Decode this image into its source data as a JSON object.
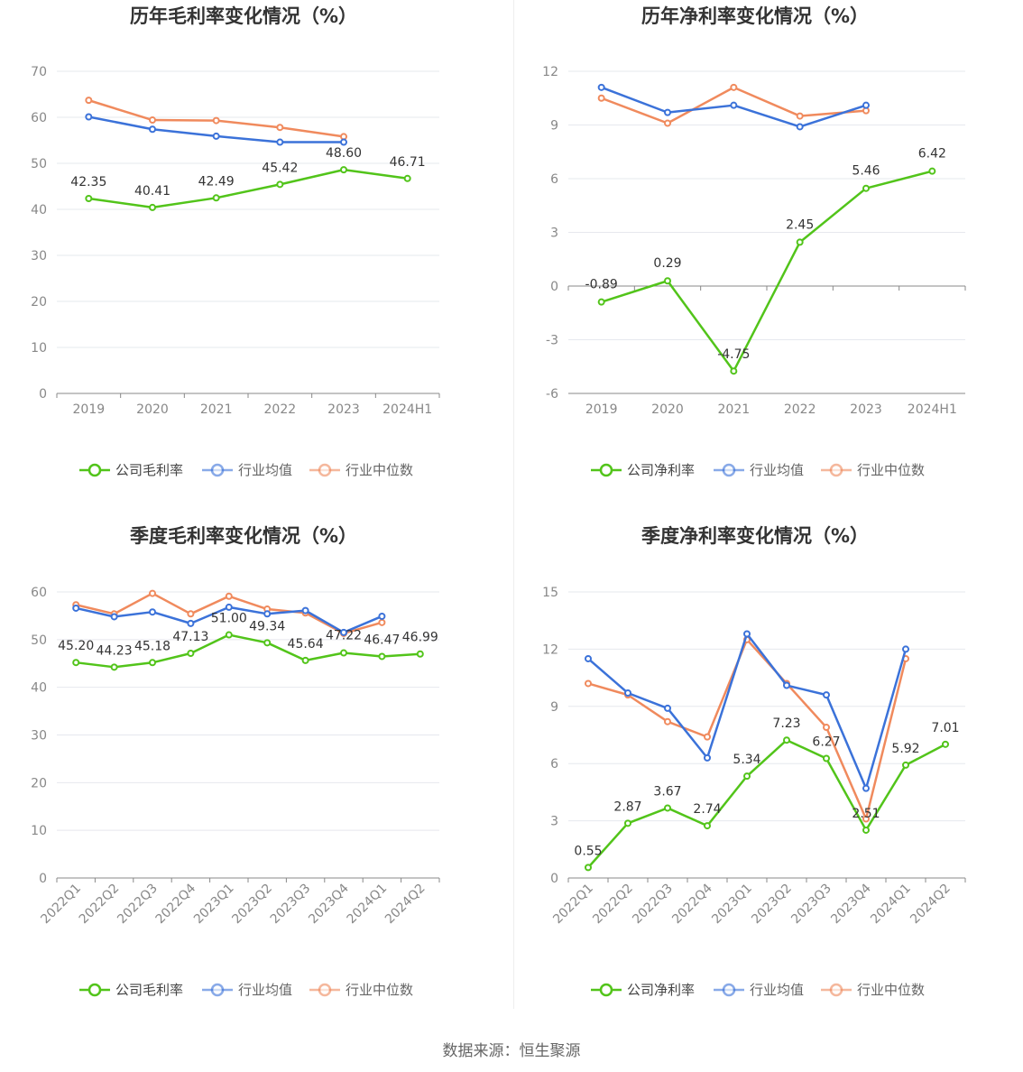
{
  "source_text": "数据来源：恒生聚源",
  "colors": {
    "company": "#52c41a",
    "avg": "#3b72d9",
    "median": "#f08a5d"
  },
  "legends": {
    "gross": [
      "公司毛利率",
      "行业均值",
      "行业中位数"
    ],
    "net": [
      "公司净利率",
      "行业均值",
      "行业中位数"
    ]
  },
  "chart_data": [
    {
      "type": "line",
      "title": "历年毛利率变化情况（%）",
      "categories": [
        "2019",
        "2020",
        "2021",
        "2022",
        "2023",
        "2024H1"
      ],
      "ylim": [
        0,
        70
      ],
      "yticks": [
        0,
        10,
        20,
        30,
        40,
        50,
        60,
        70
      ],
      "grid": true,
      "legend_position": "bottom",
      "series": [
        {
          "name": "公司毛利率",
          "values": [
            42.35,
            40.41,
            42.49,
            45.42,
            48.6,
            46.71
          ],
          "labels": [
            "42.35",
            "40.41",
            "42.49",
            "45.42",
            "48.60",
            "46.71"
          ]
        },
        {
          "name": "行业均值",
          "values": [
            60.1,
            57.4,
            55.9,
            54.6,
            54.6,
            null
          ]
        },
        {
          "name": "行业中位数",
          "values": [
            63.7,
            59.4,
            59.3,
            57.8,
            55.8,
            null
          ]
        }
      ]
    },
    {
      "type": "line",
      "title": "历年净利率变化情况（%）",
      "categories": [
        "2019",
        "2020",
        "2021",
        "2022",
        "2023",
        "2024H1"
      ],
      "ylim": [
        -6,
        12
      ],
      "yticks": [
        -6,
        -3,
        0,
        3,
        6,
        9,
        12
      ],
      "grid": true,
      "legend_position": "bottom",
      "series": [
        {
          "name": "公司净利率",
          "values": [
            -0.89,
            0.29,
            -4.75,
            2.45,
            5.46,
            6.42
          ],
          "labels": [
            "-0.89",
            "0.29",
            "-4.75",
            "2.45",
            "5.46",
            "6.42"
          ]
        },
        {
          "name": "行业均值",
          "values": [
            11.1,
            9.7,
            10.1,
            8.9,
            10.1,
            null
          ]
        },
        {
          "name": "行业中位数",
          "values": [
            10.5,
            9.1,
            11.1,
            9.5,
            9.8,
            null
          ]
        }
      ]
    },
    {
      "type": "line",
      "title": "季度毛利率变化情况（%）",
      "categories": [
        "2022Q1",
        "2022Q2",
        "2022Q3",
        "2022Q4",
        "2023Q1",
        "2023Q2",
        "2023Q3",
        "2023Q4",
        "2024Q1",
        "2024Q2"
      ],
      "ylim": [
        0,
        60
      ],
      "yticks": [
        0,
        10,
        20,
        30,
        40,
        50,
        60
      ],
      "grid": true,
      "legend_position": "bottom",
      "series": [
        {
          "name": "公司毛利率",
          "values": [
            45.2,
            44.23,
            45.18,
            47.13,
            51.0,
            49.34,
            45.64,
            47.22,
            46.47,
            46.99
          ],
          "labels": [
            "45.20",
            "44.23",
            "45.18",
            "47.13",
            "51.00",
            "49.34",
            "45.64",
            "47.22",
            "46.47",
            "46.99"
          ]
        },
        {
          "name": "行业均值",
          "values": [
            56.6,
            54.8,
            55.8,
            53.4,
            56.8,
            55.4,
            56.1,
            51.5,
            54.9,
            null
          ]
        },
        {
          "name": "行业中位数",
          "values": [
            57.3,
            55.4,
            59.7,
            55.4,
            59.1,
            56.4,
            55.6,
            51.3,
            53.6,
            null
          ]
        }
      ]
    },
    {
      "type": "line",
      "title": "季度净利率变化情况（%）",
      "categories": [
        "2022Q1",
        "2022Q2",
        "2022Q3",
        "2022Q4",
        "2023Q1",
        "2023Q2",
        "2023Q3",
        "2023Q4",
        "2024Q1",
        "2024Q2"
      ],
      "ylim": [
        0,
        15
      ],
      "yticks": [
        0,
        3,
        6,
        9,
        12,
        15
      ],
      "grid": true,
      "legend_position": "bottom",
      "series": [
        {
          "name": "公司净利率",
          "values": [
            0.55,
            2.87,
            3.67,
            2.74,
            5.34,
            7.23,
            6.27,
            2.51,
            5.92,
            7.01
          ],
          "labels": [
            "0.55",
            "2.87",
            "3.67",
            "2.74",
            "5.34",
            "7.23",
            "6.27",
            "2.51",
            "5.92",
            "7.01"
          ]
        },
        {
          "name": "行业均值",
          "values": [
            11.5,
            9.7,
            8.9,
            6.3,
            12.8,
            10.1,
            9.6,
            4.7,
            12.0,
            null
          ]
        },
        {
          "name": "行业中位数",
          "values": [
            10.2,
            9.6,
            8.2,
            7.4,
            12.5,
            10.2,
            7.9,
            3.1,
            11.5,
            null
          ]
        }
      ]
    }
  ]
}
